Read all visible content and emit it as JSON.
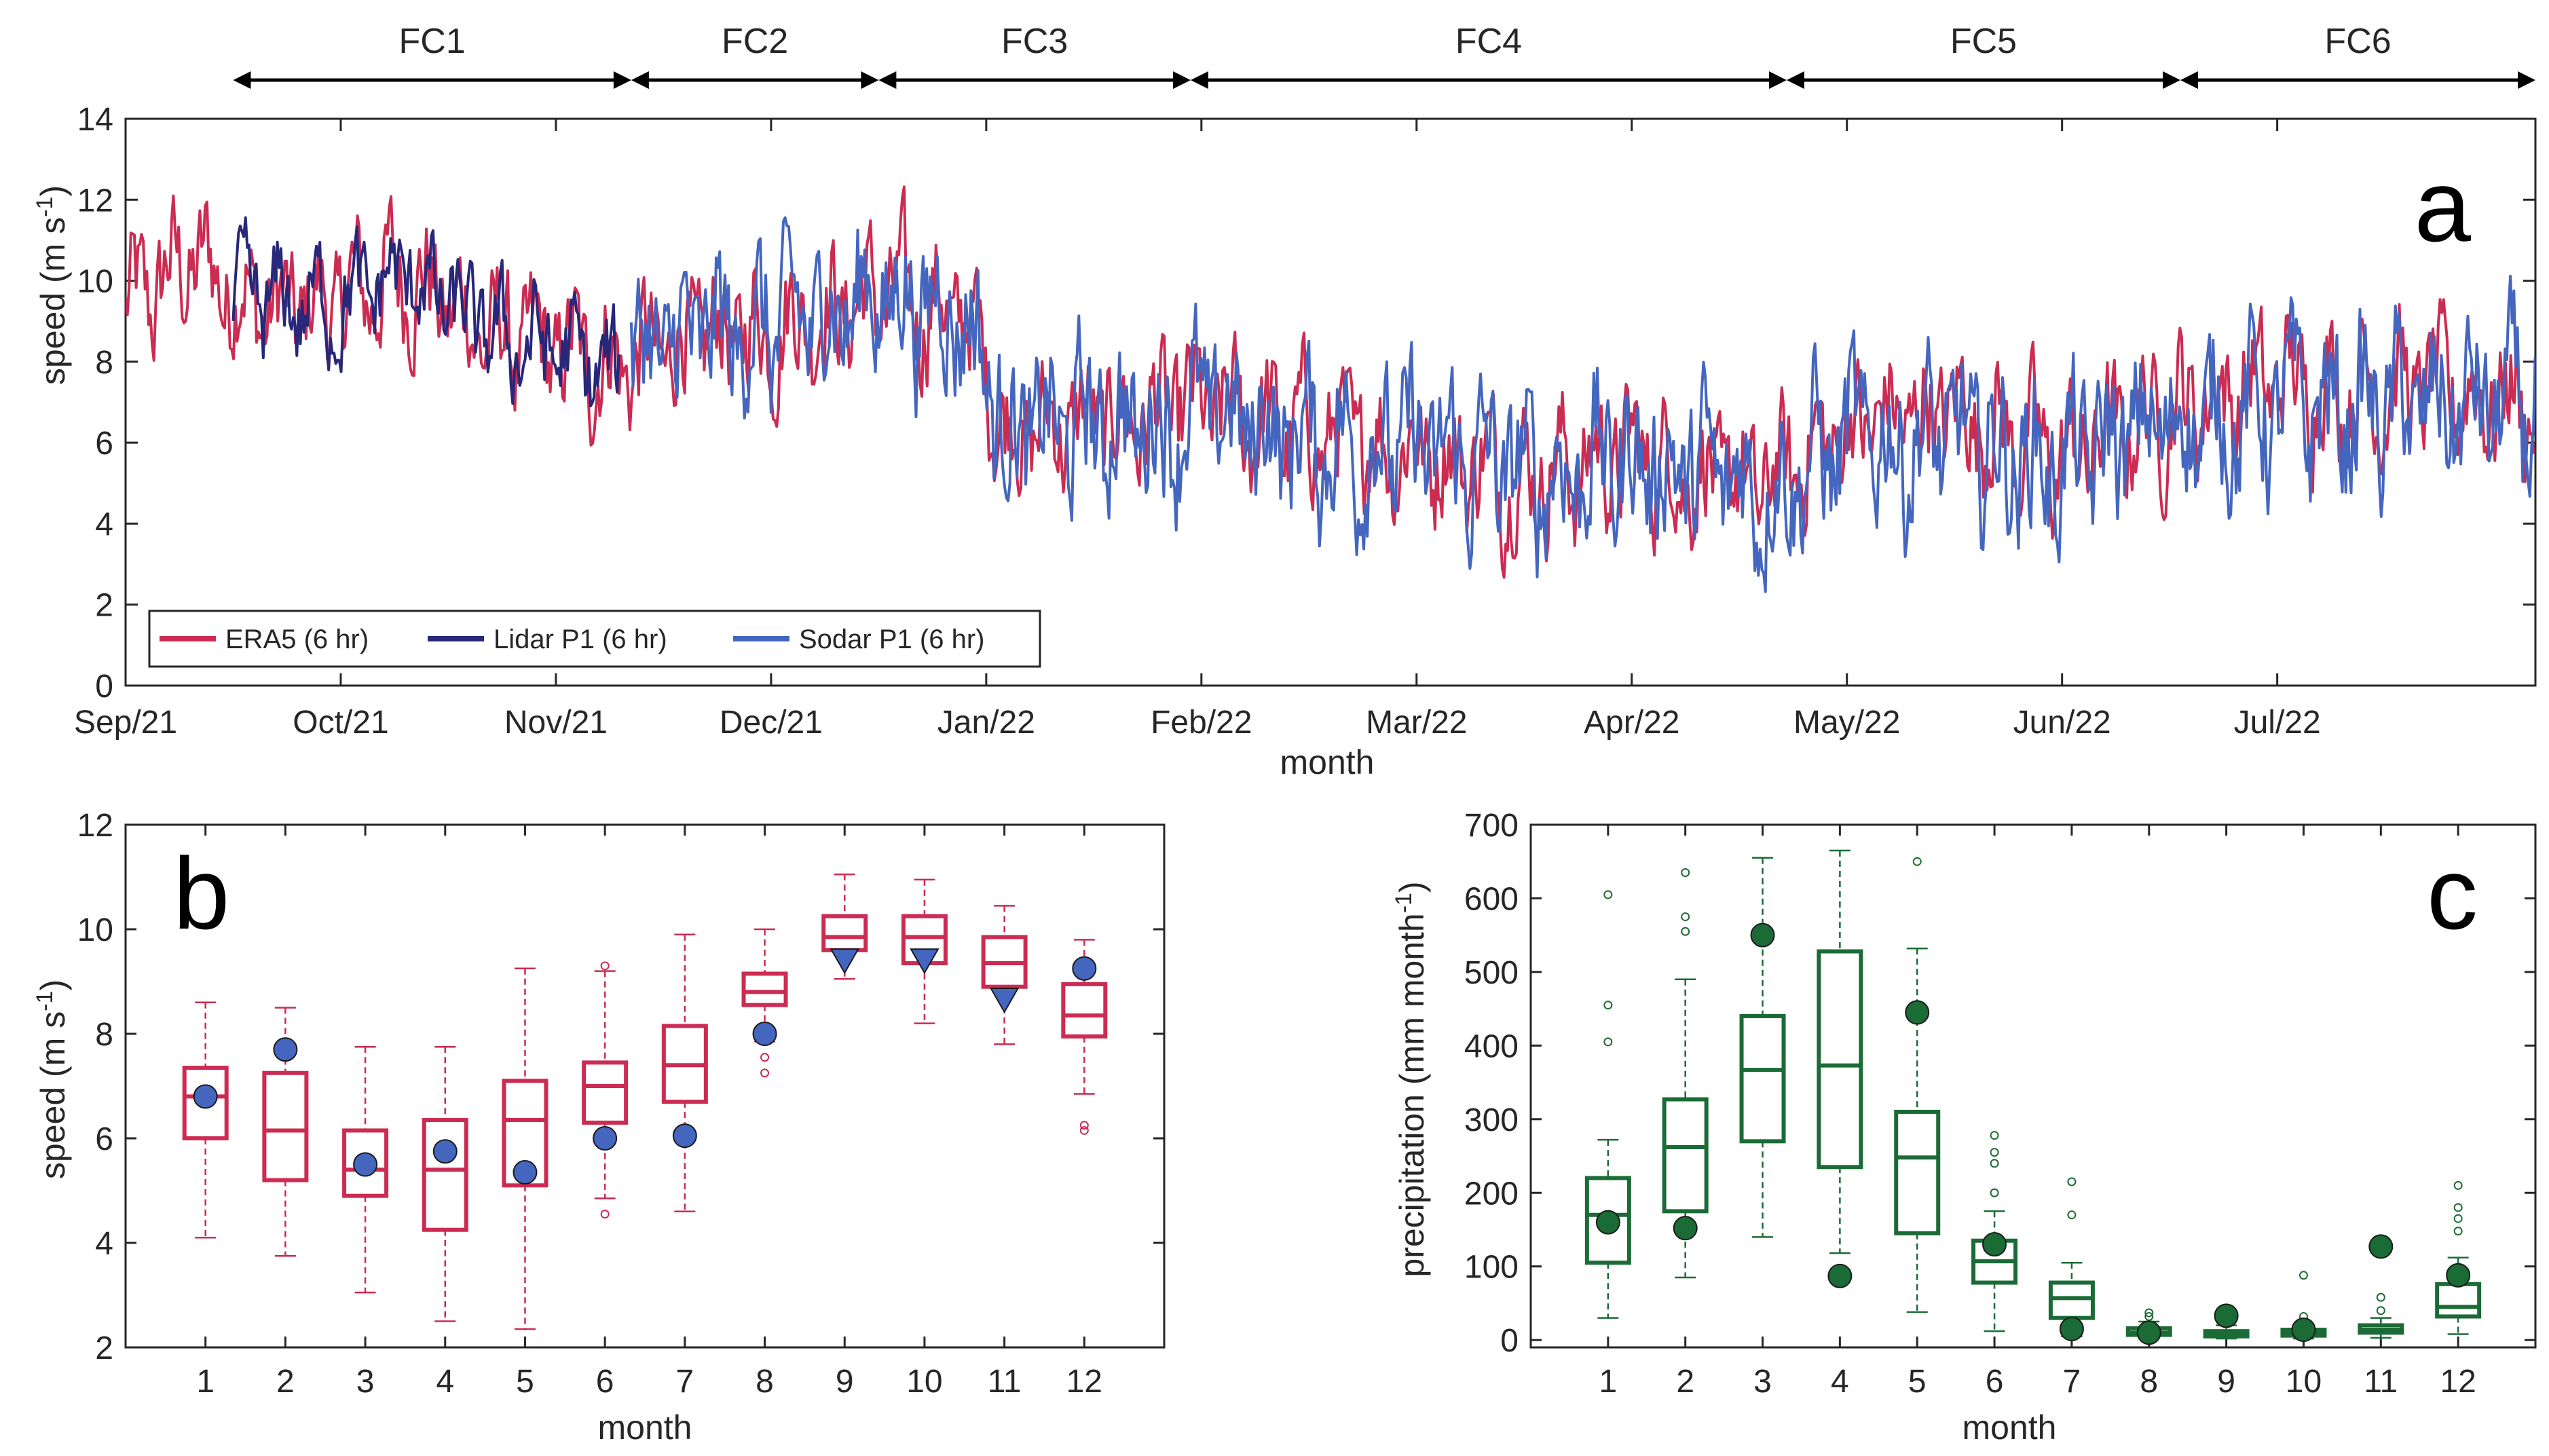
{
  "colors": {
    "era5": "#cc2b52",
    "lidar": "#27287a",
    "sodar": "#4466bf",
    "box_b": "#cc2b52",
    "obs_b": "#4466bf",
    "box_c": "#1b6b36",
    "obs_c": "#1b6b36",
    "axis": "#262626"
  },
  "chart_data": [
    {
      "id": "a",
      "type": "line",
      "panel_label": "a",
      "xlabel": "month",
      "ylabel": "speed (m s",
      "ylabel_sup": "-1",
      "ylabel_tail": ")",
      "ylim": [
        0,
        14
      ],
      "yticks": [
        0,
        2,
        4,
        6,
        8,
        10,
        12,
        14
      ],
      "x_months": 11.2,
      "month_ticks": [
        "Sep/21",
        "Oct/21",
        "Nov/21",
        "Dec/21",
        "Jan/22",
        "Feb/22",
        "Mar/22",
        "Apr/22",
        "May/22",
        "Jun/22",
        "Jul/22"
      ],
      "month_tick_pos": [
        0,
        1,
        2,
        3,
        4,
        5,
        6,
        7,
        8,
        9,
        10
      ],
      "forecast_periods": [
        {
          "label": "FC1",
          "start": 0.5,
          "end": 2.35
        },
        {
          "label": "FC2",
          "start": 2.35,
          "end": 3.5
        },
        {
          "label": "FC3",
          "start": 3.5,
          "end": 4.95
        },
        {
          "label": "FC4",
          "start": 4.95,
          "end": 7.72
        },
        {
          "label": "FC5",
          "start": 7.72,
          "end": 9.55
        },
        {
          "label": "FC6",
          "start": 9.55,
          "end": 11.2
        }
      ],
      "legend": [
        "ERA5 (6 hr)",
        "Lidar P1 (6 hr)",
        "Sodar P1 (6 hr)"
      ],
      "series_profiles": {
        "era5": {
          "range": [
            0,
            11.2
          ],
          "anchors": [
            [
              0,
              9.2
            ],
            [
              0.3,
              10.5
            ],
            [
              0.7,
              9.2
            ],
            [
              1.0,
              9.5
            ],
            [
              1.3,
              10.2
            ],
            [
              1.7,
              8.6
            ],
            [
              2.0,
              8.2
            ],
            [
              2.35,
              8.0
            ],
            [
              2.7,
              8.6
            ],
            [
              3.0,
              8.9
            ],
            [
              3.5,
              9.6
            ],
            [
              3.9,
              9.2
            ],
            [
              4.1,
              6.3
            ],
            [
              5.0,
              6.8
            ],
            [
              5.5,
              6.2
            ],
            [
              6.0,
              5.9
            ],
            [
              6.5,
              5.2
            ],
            [
              7.0,
              5.7
            ],
            [
              7.6,
              4.8
            ],
            [
              8.0,
              6.4
            ],
            [
              8.5,
              6.9
            ],
            [
              9.0,
              5.5
            ],
            [
              9.5,
              6.9
            ],
            [
              10.0,
              7.5
            ],
            [
              10.5,
              7.4
            ],
            [
              11.2,
              7.0
            ]
          ],
          "amp": 1.2
        },
        "lidar": {
          "range": [
            0.5,
            2.3
          ],
          "anchors": [
            [
              0.5,
              9.5
            ],
            [
              1.0,
              9.4
            ],
            [
              1.3,
              10.2
            ],
            [
              1.7,
              8.6
            ],
            [
              2.0,
              8.3
            ],
            [
              2.3,
              7.5
            ]
          ],
          "amp": 0.95
        },
        "sodar": {
          "range": [
            2.35,
            11.2
          ],
          "anchors": [
            [
              2.35,
              8.1
            ],
            [
              2.7,
              8.6
            ],
            [
              3.0,
              8.8
            ],
            [
              3.5,
              9.7
            ],
            [
              3.9,
              9.3
            ],
            [
              4.1,
              6.2
            ],
            [
              5.0,
              6.7
            ],
            [
              5.5,
              6.1
            ],
            [
              6.0,
              5.8
            ],
            [
              6.5,
              5.2
            ],
            [
              7.0,
              5.6
            ],
            [
              7.6,
              4.9
            ],
            [
              8.0,
              6.0
            ],
            [
              8.5,
              6.0
            ],
            [
              9.0,
              5.4
            ],
            [
              9.5,
              6.5
            ],
            [
              10.0,
              6.8
            ],
            [
              10.5,
              6.8
            ],
            [
              11.2,
              6.9
            ]
          ],
          "amp": 1.5
        }
      }
    },
    {
      "id": "b",
      "type": "box",
      "panel_label": "b",
      "xlabel": "month",
      "ylabel": "speed (m s",
      "ylabel_sup": "-1",
      "ylabel_tail": ")",
      "ylim": [
        2,
        12
      ],
      "yticks": [
        2,
        4,
        6,
        8,
        10,
        12
      ],
      "categories": [
        "1",
        "2",
        "3",
        "4",
        "5",
        "6",
        "7",
        "8",
        "9",
        "10",
        "11",
        "12"
      ],
      "boxes": [
        {
          "whisker_low": 4.1,
          "q1": 6.0,
          "median": 6.8,
          "q3": 7.35,
          "whisker_high": 8.6,
          "outliers": []
        },
        {
          "whisker_low": 3.75,
          "q1": 5.2,
          "median": 6.15,
          "q3": 7.25,
          "whisker_high": 8.5,
          "outliers": []
        },
        {
          "whisker_low": 3.05,
          "q1": 4.9,
          "median": 5.4,
          "q3": 6.15,
          "whisker_high": 7.75,
          "outliers": []
        },
        {
          "whisker_low": 2.5,
          "q1": 4.25,
          "median": 5.4,
          "q3": 6.35,
          "whisker_high": 7.75,
          "outliers": []
        },
        {
          "whisker_low": 2.35,
          "q1": 5.1,
          "median": 6.35,
          "q3": 7.1,
          "whisker_high": 9.25,
          "outliers": []
        },
        {
          "whisker_low": 4.85,
          "q1": 6.3,
          "median": 7.0,
          "q3": 7.45,
          "whisker_high": 9.2,
          "outliers": [
            4.55,
            9.3
          ]
        },
        {
          "whisker_low": 4.6,
          "q1": 6.7,
          "median": 7.4,
          "q3": 8.15,
          "whisker_high": 9.9,
          "outliers": []
        },
        {
          "whisker_low": 7.85,
          "q1": 8.55,
          "median": 8.8,
          "q3": 9.15,
          "whisker_high": 10.0,
          "outliers": [
            7.55,
            7.25
          ]
        },
        {
          "whisker_low": 9.05,
          "q1": 9.6,
          "median": 9.85,
          "q3": 10.25,
          "whisker_high": 11.05,
          "outliers": []
        },
        {
          "whisker_low": 8.2,
          "q1": 9.35,
          "median": 9.85,
          "q3": 10.25,
          "whisker_high": 10.95,
          "outliers": []
        },
        {
          "whisker_low": 7.8,
          "q1": 8.9,
          "median": 9.35,
          "q3": 9.85,
          "whisker_high": 10.45,
          "outliers": []
        },
        {
          "whisker_low": 6.85,
          "q1": 7.95,
          "median": 8.35,
          "q3": 8.95,
          "whisker_high": 9.8,
          "outliers": [
            6.25,
            6.15
          ]
        }
      ],
      "observed": [
        {
          "value": 6.8,
          "marker": "circle"
        },
        {
          "value": 7.7,
          "marker": "circle"
        },
        {
          "value": 5.5,
          "marker": "circle"
        },
        {
          "value": 5.75,
          "marker": "circle"
        },
        {
          "value": 5.35,
          "marker": "circle"
        },
        {
          "value": 6.0,
          "marker": "circle"
        },
        {
          "value": 6.05,
          "marker": "circle"
        },
        {
          "value": 8.0,
          "marker": "circle"
        },
        {
          "value": 9.4,
          "marker": "triangle"
        },
        {
          "value": 9.4,
          "marker": "triangle"
        },
        {
          "value": 8.65,
          "marker": "triangle"
        },
        {
          "value": 9.25,
          "marker": "circle"
        }
      ]
    },
    {
      "id": "c",
      "type": "box",
      "panel_label": "c",
      "xlabel": "month",
      "ylabel": "precipitation (mm month",
      "ylabel_sup": "-1",
      "ylabel_tail": ")",
      "ylim": [
        -10,
        700
      ],
      "yticks": [
        0,
        100,
        200,
        300,
        400,
        500,
        600,
        700
      ],
      "categories": [
        "1",
        "2",
        "3",
        "4",
        "5",
        "6",
        "7",
        "8",
        "9",
        "10",
        "11",
        "12"
      ],
      "boxes": [
        {
          "whisker_low": 30,
          "q1": 105,
          "median": 170,
          "q3": 220,
          "whisker_high": 272,
          "outliers": [
            405,
            455,
            605
          ]
        },
        {
          "whisker_low": 85,
          "q1": 175,
          "median": 262,
          "q3": 327,
          "whisker_high": 490,
          "outliers": [
            555,
            575,
            635
          ]
        },
        {
          "whisker_low": 140,
          "q1": 270,
          "median": 367,
          "q3": 440,
          "whisker_high": 655,
          "outliers": []
        },
        {
          "whisker_low": 118,
          "q1": 235,
          "median": 373,
          "q3": 528,
          "whisker_high": 665,
          "outliers": []
        },
        {
          "whisker_low": 38,
          "q1": 145,
          "median": 248,
          "q3": 310,
          "whisker_high": 532,
          "outliers": [
            650
          ]
        },
        {
          "whisker_low": 12,
          "q1": 78,
          "median": 107,
          "q3": 135,
          "whisker_high": 175,
          "outliers": [
            200,
            240,
            255,
            278
          ]
        },
        {
          "whisker_low": 5,
          "q1": 30,
          "median": 57,
          "q3": 78,
          "whisker_high": 105,
          "outliers": [
            170,
            215
          ]
        },
        {
          "whisker_low": 2,
          "q1": 7,
          "median": 10,
          "q3": 16,
          "whisker_high": 25,
          "outliers": [
            32,
            37
          ]
        },
        {
          "whisker_low": 2,
          "q1": 5,
          "median": 8,
          "q3": 12,
          "whisker_high": 20,
          "outliers": []
        },
        {
          "whisker_low": 2,
          "q1": 6,
          "median": 9,
          "q3": 14,
          "whisker_high": 20,
          "outliers": [
            32,
            88
          ]
        },
        {
          "whisker_low": 3,
          "q1": 10,
          "median": 14,
          "q3": 20,
          "whisker_high": 30,
          "outliers": [
            40,
            58
          ]
        },
        {
          "whisker_low": 8,
          "q1": 32,
          "median": 45,
          "q3": 76,
          "whisker_high": 112,
          "outliers": [
            148,
            165,
            180,
            210
          ]
        }
      ],
      "observed": [
        {
          "value": 160,
          "marker": "circle"
        },
        {
          "value": 152,
          "marker": "circle"
        },
        {
          "value": 550,
          "marker": "circle"
        },
        {
          "value": 87,
          "marker": "circle"
        },
        {
          "value": 445,
          "marker": "circle"
        },
        {
          "value": 130,
          "marker": "circle"
        },
        {
          "value": 15,
          "marker": "circle"
        },
        {
          "value": 10,
          "marker": "circle"
        },
        {
          "value": 33,
          "marker": "circle"
        },
        {
          "value": 14,
          "marker": "circle"
        },
        {
          "value": 127,
          "marker": "circle"
        },
        {
          "value": 88,
          "marker": "circle"
        }
      ]
    }
  ]
}
